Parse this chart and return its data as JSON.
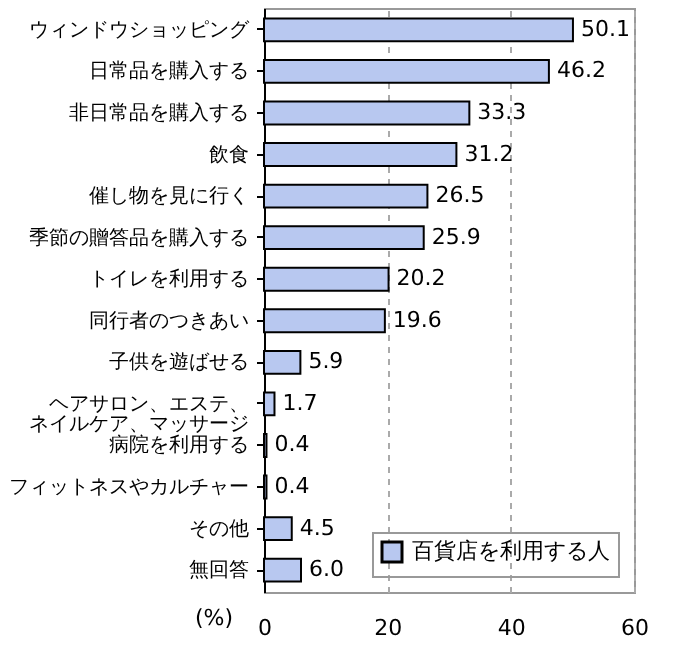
{
  "chart_data": {
    "type": "bar",
    "orientation": "horizontal",
    "categories": [
      "ウィンドウショッピング",
      "日常品を購入する",
      "非日常品を購入する",
      "飲食",
      "催し物を見に行く",
      "季節の贈答品を購入する",
      "トイレを利用する",
      "同行者のつきあい",
      "子供を遊ばせる",
      "ヘアサロン、エステ、ネイルケア、マッサージ",
      "病院を利用する",
      "フィットネスやカルチャー",
      "その他",
      "無回答"
    ],
    "series": [
      {
        "name": "百貨店を利用する人",
        "color": "#b8c8f0",
        "values": [
          50.1,
          46.2,
          33.3,
          31.2,
          26.5,
          25.9,
          20.2,
          19.6,
          5.9,
          1.7,
          0.4,
          0.4,
          4.5,
          6.0
        ]
      }
    ],
    "xlabel": "(%)",
    "xlim": [
      0,
      60
    ],
    "xticks": [
      0,
      20,
      40,
      60
    ],
    "value_labels": [
      "50.1",
      "46.2",
      "33.3",
      "31.2",
      "26.5",
      "25.9",
      "20.2",
      "19.6",
      "5.9",
      "1.7",
      "0.4",
      "0.4",
      "4.5",
      "6.0"
    ],
    "grid": "x",
    "legend": "bottom right"
  }
}
